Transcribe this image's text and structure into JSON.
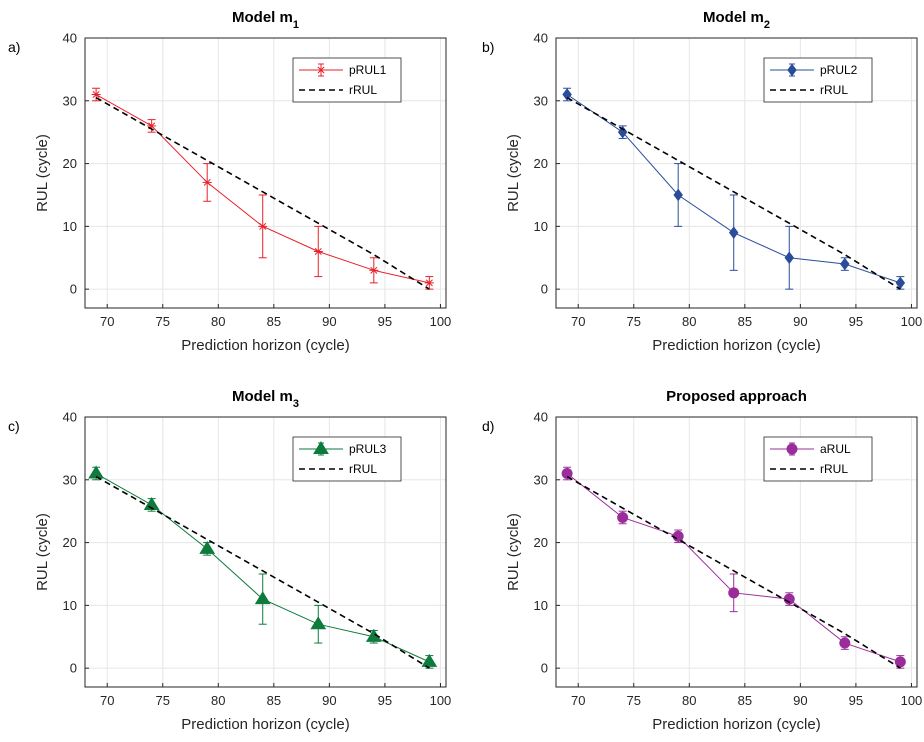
{
  "chart_data": [
    {
      "panel_letter": "a)",
      "type": "line",
      "title": "Model m",
      "title_sub": "1",
      "xlabel": "Prediction horizon (cycle)",
      "ylabel": "RUL (cycle)",
      "xlim": [
        68,
        100.5
      ],
      "ylim": [
        -3,
        40
      ],
      "xticks": [
        70,
        75,
        80,
        85,
        90,
        95,
        100
      ],
      "yticks": [
        0,
        10,
        20,
        30,
        40
      ],
      "grid": true,
      "legend_position": "top-right",
      "x": [
        69,
        74,
        79,
        84,
        89,
        94,
        99
      ],
      "series": [
        {
          "name": "pRUL1",
          "color": "#e8202a",
          "marker": "asterisk",
          "values": [
            31,
            26,
            17,
            10,
            6,
            3,
            1
          ],
          "err_low": [
            30,
            25,
            14,
            5,
            2,
            1,
            0
          ],
          "err_high": [
            32,
            27,
            20,
            15,
            10,
            5,
            2
          ]
        },
        {
          "name": "rRUL",
          "color": "#000000",
          "dashed": true,
          "values": [
            30.5,
            25.5,
            20.5,
            15.5,
            10.5,
            5.5,
            0
          ]
        }
      ]
    },
    {
      "panel_letter": "b)",
      "type": "line",
      "title": "Model m",
      "title_sub": "2",
      "xlabel": "Prediction horizon (cycle)",
      "ylabel": "RUL (cycle)",
      "xlim": [
        68,
        100.5
      ],
      "ylim": [
        -3,
        40
      ],
      "xticks": [
        70,
        75,
        80,
        85,
        90,
        95,
        100
      ],
      "yticks": [
        0,
        10,
        20,
        30,
        40
      ],
      "grid": true,
      "legend_position": "top-right",
      "x": [
        69,
        74,
        79,
        84,
        89,
        94,
        99
      ],
      "series": [
        {
          "name": "pRUL2",
          "color": "#2a4d9b",
          "marker": "diamond",
          "values": [
            31,
            25,
            15,
            9,
            5,
            4,
            1
          ],
          "err_low": [
            30,
            24,
            10,
            3,
            0,
            3,
            0
          ],
          "err_high": [
            32,
            26,
            20,
            15,
            10,
            5,
            2
          ]
        },
        {
          "name": "rRUL",
          "color": "#000000",
          "dashed": true,
          "values": [
            30.5,
            25.5,
            20.5,
            15.5,
            10.5,
            5.5,
            0
          ]
        }
      ]
    },
    {
      "panel_letter": "c)",
      "type": "line",
      "title": "Model m",
      "title_sub": "3",
      "xlabel": "Prediction horizon (cycle)",
      "ylabel": "RUL (cycle)",
      "xlim": [
        68,
        100.5
      ],
      "ylim": [
        -3,
        40
      ],
      "xticks": [
        70,
        75,
        80,
        85,
        90,
        95,
        100
      ],
      "yticks": [
        0,
        10,
        20,
        30,
        40
      ],
      "grid": true,
      "legend_position": "top-right",
      "x": [
        69,
        74,
        79,
        84,
        89,
        94,
        99
      ],
      "series": [
        {
          "name": "pRUL3",
          "color": "#0e7a3c",
          "marker": "triangle",
          "values": [
            31,
            26,
            19,
            11,
            7,
            5,
            1
          ],
          "err_low": [
            30,
            25,
            18,
            7,
            4,
            4,
            0
          ],
          "err_high": [
            32,
            27,
            20,
            15,
            10,
            6,
            2
          ]
        },
        {
          "name": "rRUL",
          "color": "#000000",
          "dashed": true,
          "values": [
            30.5,
            25.5,
            20.5,
            15.5,
            10.5,
            5.5,
            0
          ]
        }
      ]
    },
    {
      "panel_letter": "d)",
      "type": "line",
      "title": "Proposed approach",
      "title_sub": "",
      "xlabel": "Prediction horizon (cycle)",
      "ylabel": "RUL (cycle)",
      "xlim": [
        68,
        100.5
      ],
      "ylim": [
        -3,
        40
      ],
      "xticks": [
        70,
        75,
        80,
        85,
        90,
        95,
        100
      ],
      "yticks": [
        0,
        10,
        20,
        30,
        40
      ],
      "grid": true,
      "legend_position": "top-right",
      "x": [
        69,
        74,
        79,
        84,
        89,
        94,
        99
      ],
      "series": [
        {
          "name": "aRUL",
          "color": "#9b2d9b",
          "marker": "circle",
          "values": [
            31,
            24,
            21,
            12,
            11,
            4,
            1
          ],
          "err_low": [
            30,
            23,
            20,
            9,
            10,
            3,
            0
          ],
          "err_high": [
            32,
            25,
            22,
            15,
            12,
            5,
            2
          ]
        },
        {
          "name": "rRUL",
          "color": "#000000",
          "dashed": true,
          "values": [
            30.5,
            25.5,
            20.5,
            15.5,
            10.5,
            5.5,
            0
          ]
        }
      ]
    }
  ]
}
